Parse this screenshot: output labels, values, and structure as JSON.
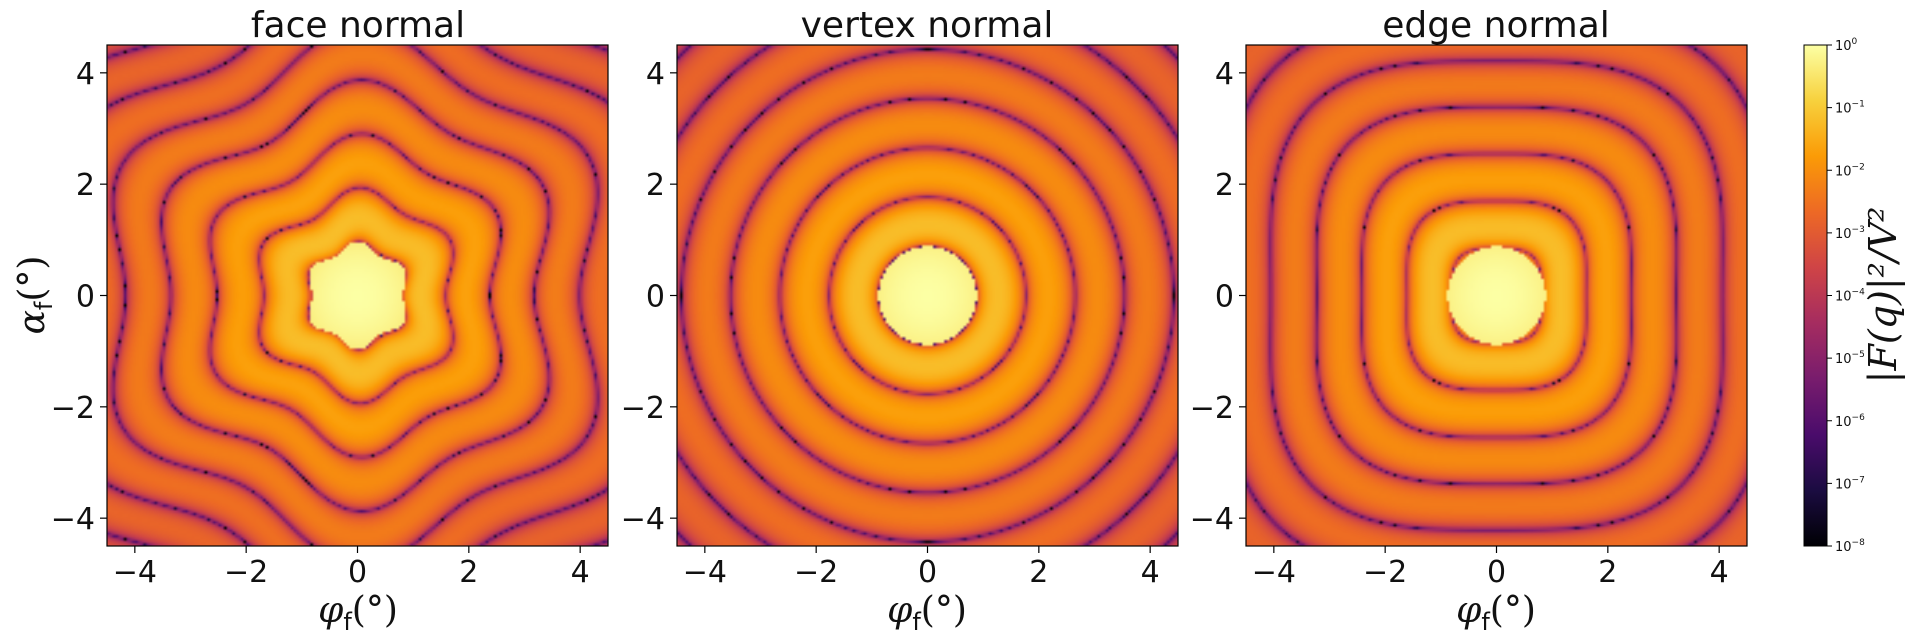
{
  "chart_data": [
    {
      "type": "heatmap",
      "title": "face normal",
      "pattern": "hexagonal",
      "colormap": "inferno",
      "xlabel": "φf(°)",
      "ylabel": "αf(°)",
      "xlim": [
        -4.5,
        4.5
      ],
      "ylim": [
        -4.5,
        4.5
      ],
      "xticks": [
        -4,
        -2,
        0,
        2,
        4
      ],
      "yticks": [
        -4,
        -2,
        0,
        2,
        4
      ],
      "scale": "log",
      "vmin": 1e-08,
      "vmax": 1
    },
    {
      "type": "heatmap",
      "title": "vertex normal",
      "pattern": "concentric-rings",
      "colormap": "inferno",
      "xlabel": "φf(°)",
      "xlim": [
        -4.5,
        4.5
      ],
      "ylim": [
        -4.5,
        4.5
      ],
      "xticks": [
        -4,
        -2,
        0,
        2,
        4
      ],
      "yticks": [
        -4,
        -2,
        0,
        2,
        4
      ],
      "scale": "log",
      "vmin": 1e-08,
      "vmax": 1
    },
    {
      "type": "heatmap",
      "title": "edge normal",
      "pattern": "rectangular",
      "colormap": "inferno",
      "xlabel": "φf(°)",
      "xlim": [
        -4.5,
        4.5
      ],
      "ylim": [
        -4.5,
        4.5
      ],
      "xticks": [
        -4,
        -2,
        0,
        2,
        4
      ],
      "yticks": [
        -4,
        -2,
        0,
        2,
        4
      ],
      "scale": "log",
      "vmin": 1e-08,
      "vmax": 1
    }
  ],
  "colorbar": {
    "label": "|F(q)|²/V²",
    "scale": "log",
    "exponents": [
      0,
      -1,
      -2,
      -3,
      -4,
      -5,
      -6,
      -7,
      -8
    ],
    "tick_base": "10"
  },
  "axis_labels": {
    "x_sym": "φ",
    "y_sym": "α",
    "sub": "f",
    "unit": "(°)"
  },
  "colors": {
    "inferno": [
      "#000004",
      "#1b0c41",
      "#4a0c6b",
      "#781c6d",
      "#a52c60",
      "#cf4446",
      "#ed6925",
      "#fb9b06",
      "#f7d13d",
      "#fcffa4"
    ]
  }
}
